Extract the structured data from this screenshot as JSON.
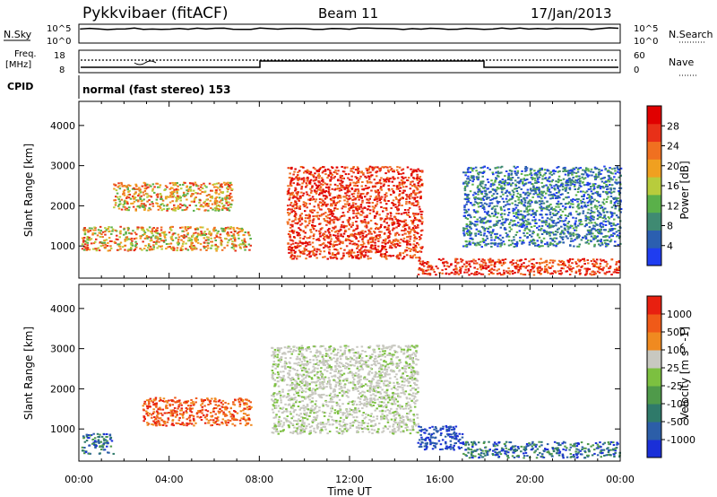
{
  "header": {
    "title": "Pykkvibaer (fitACF)",
    "beam": "Beam 11",
    "date": "17/Jan/2013"
  },
  "summary": {
    "nsky_label": "N.Sky",
    "nsearch_label": "N.Search",
    "freq_label": "Freq.",
    "freq_unit": "[MHz]",
    "cpid_label": "CPID",
    "nave_label": "Nave",
    "noise_ticks": [
      "10^5",
      "10^0"
    ],
    "noise_right_ticks": [
      "10^5",
      "10^0"
    ],
    "freq_ticks": [
      "18",
      "8"
    ],
    "nave_ticks": [
      "60",
      "0"
    ],
    "cpid_text": "normal (fast stereo) 153"
  },
  "chart_data": [
    {
      "type": "heatmap",
      "title": "",
      "xlabel": "",
      "ylabel": "Slant Range [km]",
      "xlim": [
        "00:00",
        "24:00"
      ],
      "ylim": [
        200,
        4600
      ],
      "yticks": [
        "1000",
        "2000",
        "3000",
        "4000"
      ],
      "colorbar": {
        "label": "Power [dB]",
        "ticks": [
          "4",
          "8",
          "12",
          "16",
          "20",
          "24",
          "28"
        ],
        "range": [
          0,
          30
        ],
        "colors": [
          "#1f3df0",
          "#2b5fb0",
          "#3f8a72",
          "#5ab04a",
          "#b8cc3c",
          "#f0a020",
          "#f07020",
          "#e83018",
          "#e00000"
        ]
      },
      "echo_regions": [
        {
          "t_start": 0.1,
          "t_end": 7.6,
          "range_min": 900,
          "range_max": 1500,
          "level": "high"
        },
        {
          "t_start": 1.5,
          "t_end": 6.8,
          "range_min": 1900,
          "range_max": 2600,
          "level": "high"
        },
        {
          "t_start": 9.2,
          "t_end": 15.2,
          "range_min": 700,
          "range_max": 3000,
          "level": "very high"
        },
        {
          "t_start": 15.0,
          "t_end": 24.0,
          "range_min": 300,
          "range_max": 700,
          "level": "very high"
        },
        {
          "t_start": 17.0,
          "t_end": 24.0,
          "range_min": 1000,
          "range_max": 3000,
          "level": "low"
        }
      ]
    },
    {
      "type": "heatmap",
      "title": "",
      "xlabel": "Time UT",
      "ylabel": "Slant Range [km]",
      "xlim": [
        "00:00",
        "24:00"
      ],
      "xticks": [
        "00:00",
        "04:00",
        "08:00",
        "12:00",
        "16:00",
        "20:00",
        "00:00"
      ],
      "ylim": [
        200,
        4600
      ],
      "yticks": [
        "1000",
        "2000",
        "3000",
        "4000"
      ],
      "colorbar": {
        "label": "Velocity [m s^-1]",
        "ticks": [
          "1000",
          "500",
          "100",
          "25",
          "-25",
          "-100",
          "-500",
          "-1000"
        ],
        "range": [
          -1200,
          1200
        ],
        "colors": [
          "#1a2fd8",
          "#2c5ea8",
          "#2f7a6a",
          "#4f9a4a",
          "#7cc040",
          "#c8c8c0",
          "#f08a20",
          "#f05a18",
          "#e82010"
        ]
      },
      "echo_regions": [
        {
          "t_start": 0.1,
          "t_end": 1.5,
          "range_min": 400,
          "range_max": 900,
          "level": "toward"
        },
        {
          "t_start": 2.8,
          "t_end": 7.6,
          "range_min": 1100,
          "range_max": 1800,
          "level": "away"
        },
        {
          "t_start": 8.5,
          "t_end": 15.0,
          "range_min": 900,
          "range_max": 3100,
          "level": "near zero"
        },
        {
          "t_start": 15.0,
          "t_end": 17.0,
          "range_min": 500,
          "range_max": 1100,
          "level": "strong toward"
        },
        {
          "t_start": 17.0,
          "t_end": 24.0,
          "range_min": 300,
          "range_max": 700,
          "level": "toward"
        }
      ]
    }
  ]
}
